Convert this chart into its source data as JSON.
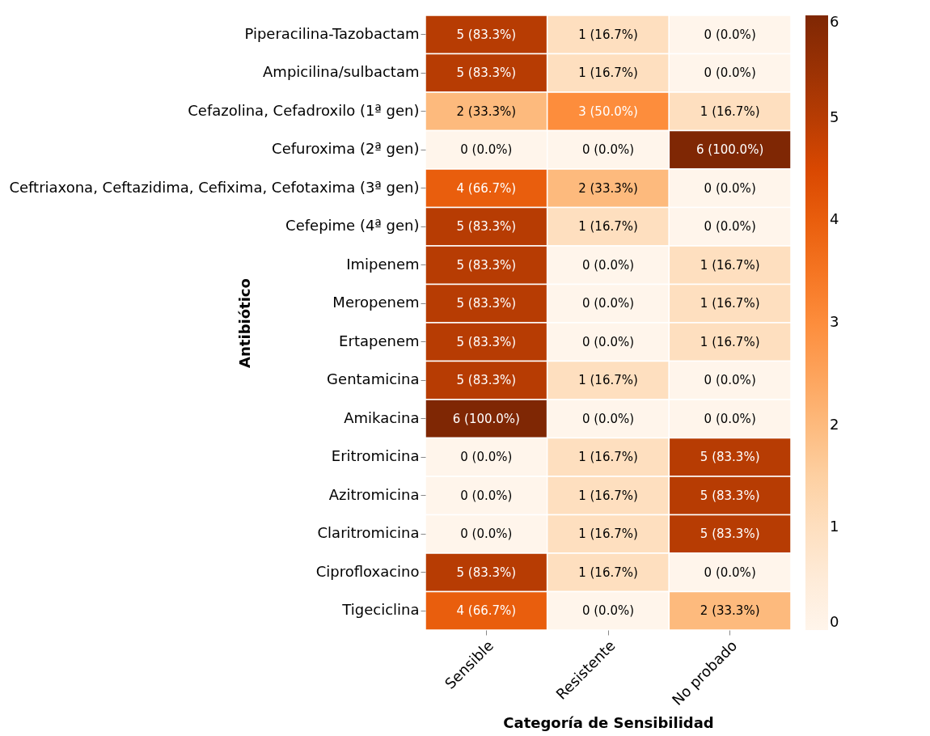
{
  "chart_data": {
    "type": "heatmap",
    "xlabel": "Categoría de Sensibilidad",
    "ylabel": "Antibiótico",
    "categories": [
      "Sensible",
      "Resistente",
      "No probado"
    ],
    "y_categories": [
      "Piperacilina-Tazobactam",
      "Ampicilina/sulbactam",
      "Cefazolina, Cefadroxilo (1ª gen)",
      "Cefuroxima (2ª gen)",
      "Ceftriaxona, Ceftazidima, Cefixima, Cefotaxima (3ª gen)",
      "Cefepime (4ª gen)",
      "Imipenem",
      "Meropenem",
      "Ertapenem",
      "Gentamicina",
      "Amikacina",
      "Eritromicina",
      "Azitromicina",
      "Claritromicina",
      "Ciprofloxacino",
      "Tigeciclina"
    ],
    "cells": [
      [
        5,
        1,
        0
      ],
      [
        5,
        1,
        0
      ],
      [
        2,
        3,
        1
      ],
      [
        0,
        0,
        6
      ],
      [
        4,
        2,
        0
      ],
      [
        5,
        1,
        0
      ],
      [
        5,
        0,
        1
      ],
      [
        5,
        0,
        1
      ],
      [
        5,
        0,
        1
      ],
      [
        5,
        1,
        0
      ],
      [
        6,
        0,
        0
      ],
      [
        0,
        1,
        5
      ],
      [
        0,
        1,
        5
      ],
      [
        0,
        1,
        5
      ],
      [
        5,
        1,
        0
      ],
      [
        4,
        0,
        2
      ]
    ],
    "cell_labels": [
      [
        "5 (83.3%)",
        "1 (16.7%)",
        "0 (0.0%)"
      ],
      [
        "5 (83.3%)",
        "1 (16.7%)",
        "0 (0.0%)"
      ],
      [
        "2 (33.3%)",
        "3 (50.0%)",
        "1 (16.7%)"
      ],
      [
        "0 (0.0%)",
        "0 (0.0%)",
        "6 (100.0%)"
      ],
      [
        "4 (66.7%)",
        "2 (33.3%)",
        "0 (0.0%)"
      ],
      [
        "5 (83.3%)",
        "1 (16.7%)",
        "0 (0.0%)"
      ],
      [
        "5 (83.3%)",
        "0 (0.0%)",
        "1 (16.7%)"
      ],
      [
        "5 (83.3%)",
        "0 (0.0%)",
        "1 (16.7%)"
      ],
      [
        "5 (83.3%)",
        "0 (0.0%)",
        "1 (16.7%)"
      ],
      [
        "5 (83.3%)",
        "1 (16.7%)",
        "0 (0.0%)"
      ],
      [
        "6 (100.0%)",
        "0 (0.0%)",
        "0 (0.0%)"
      ],
      [
        "0 (0.0%)",
        "1 (16.7%)",
        "5 (83.3%)"
      ],
      [
        "0 (0.0%)",
        "1 (16.7%)",
        "5 (83.3%)"
      ],
      [
        "0 (0.0%)",
        "1 (16.7%)",
        "5 (83.3%)"
      ],
      [
        "5 (83.3%)",
        "1 (16.7%)",
        "0 (0.0%)"
      ],
      [
        "4 (66.7%)",
        "0 (0.0%)",
        "2 (33.3%)"
      ]
    ],
    "clim": [
      0,
      6
    ],
    "cticks": [
      0,
      1,
      2,
      3,
      4,
      5,
      6
    ]
  }
}
